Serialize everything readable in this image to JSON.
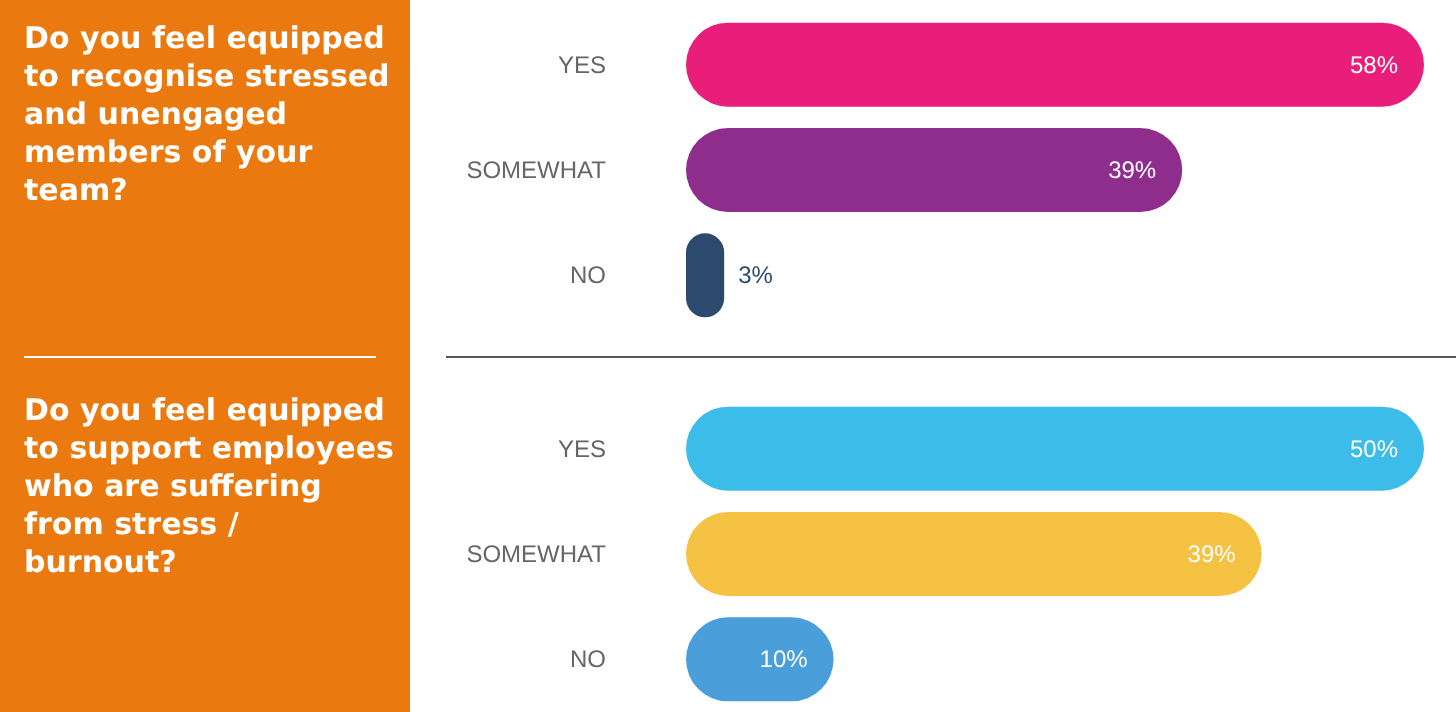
{
  "chart_data": [
    {
      "type": "bar",
      "orientation": "horizontal",
      "title": "Do you feel equipped to recognise stressed and unengaged members of your team?",
      "categories": [
        "YES",
        "SOMEWHAT",
        "NO"
      ],
      "values": [
        58,
        39,
        3
      ],
      "colors": [
        "#e91e7b",
        "#8e2d8c",
        "#2c4a6e"
      ],
      "value_labels": [
        "58%",
        "39%",
        "3%"
      ]
    },
    {
      "type": "bar",
      "orientation": "horizontal",
      "title": "Do you feel equipped to support employees who are suffering from stress / burnout?",
      "categories": [
        "YES",
        "SOMEWHAT",
        "NO"
      ],
      "values": [
        50,
        39,
        10
      ],
      "colors": [
        "#3cbde9",
        "#f6c244",
        "#4a9fdb"
      ],
      "value_labels": [
        "50%",
        "39%",
        "10%"
      ]
    }
  ]
}
